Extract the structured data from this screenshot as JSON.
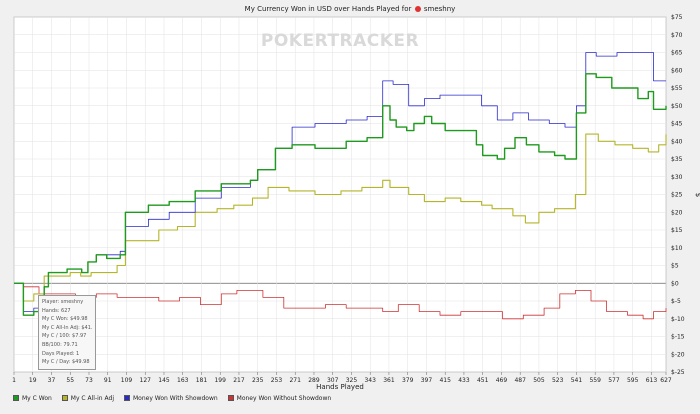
{
  "title": {
    "text": "My Currency Won in USD over Hands Played for",
    "player": "smeshny"
  },
  "watermark": "POKERTRACKER",
  "tooltip": [
    "Player: smeshny",
    "Hands: 627",
    "My C Won: $49.98",
    "My C All-In Adj: $41.92",
    "My C / 100: $7.97",
    "BB/100: 79.71",
    "Days Played: 1",
    "My C / Day: $49.98"
  ],
  "chart_data": {
    "type": "line",
    "title": "My Currency Won in USD over Hands Played for smeshny",
    "xlabel": "Hands Played",
    "ylabel": "$",
    "xlim": [
      1,
      627
    ],
    "ylim": [
      -25,
      75
    ],
    "x_ticks": [
      1,
      19,
      37,
      55,
      73,
      91,
      109,
      127,
      145,
      163,
      181,
      199,
      217,
      235,
      253,
      271,
      289,
      307,
      325,
      343,
      361,
      379,
      397,
      415,
      433,
      451,
      469,
      487,
      505,
      523,
      541,
      559,
      577,
      595,
      613,
      627
    ],
    "y_ticks": [
      {
        "value": 75,
        "label": "$75"
      },
      {
        "value": 70,
        "label": "$70"
      },
      {
        "value": 65,
        "label": "$65"
      },
      {
        "value": 60,
        "label": "$60"
      },
      {
        "value": 55,
        "label": "$55"
      },
      {
        "value": 50,
        "label": "$50"
      },
      {
        "value": 45,
        "label": "$45"
      },
      {
        "value": 40,
        "label": "$40"
      },
      {
        "value": 35,
        "label": "$35"
      },
      {
        "value": 30,
        "label": "$30"
      },
      {
        "value": 25,
        "label": "$25"
      },
      {
        "value": 20,
        "label": "$20"
      },
      {
        "value": 15,
        "label": "$15"
      },
      {
        "value": 10,
        "label": "$10"
      },
      {
        "value": 5,
        "label": "$5"
      },
      {
        "value": 0,
        "label": "$0"
      },
      {
        "value": -5,
        "label": "$-5"
      },
      {
        "value": -10,
        "label": "$-10"
      },
      {
        "value": -15,
        "label": "$-15"
      },
      {
        "value": -20,
        "label": "$-20"
      },
      {
        "value": -25,
        "label": "$-25"
      }
    ],
    "grid": true,
    "legend_position": "bottom-left",
    "series": [
      {
        "name": "My C Won",
        "color": "#1e9a1e",
        "points": [
          [
            1,
            0
          ],
          [
            10,
            -9
          ],
          [
            20,
            -8
          ],
          [
            30,
            -1
          ],
          [
            34,
            3
          ],
          [
            44,
            3
          ],
          [
            52,
            4
          ],
          [
            60,
            4
          ],
          [
            66,
            3
          ],
          [
            72,
            6
          ],
          [
            80,
            8
          ],
          [
            90,
            7
          ],
          [
            103,
            8
          ],
          [
            108,
            20
          ],
          [
            118,
            20
          ],
          [
            130,
            22
          ],
          [
            150,
            23
          ],
          [
            175,
            26
          ],
          [
            200,
            28
          ],
          [
            228,
            29
          ],
          [
            235,
            32
          ],
          [
            252,
            38
          ],
          [
            268,
            39
          ],
          [
            290,
            38
          ],
          [
            320,
            40
          ],
          [
            340,
            41
          ],
          [
            355,
            50
          ],
          [
            362,
            46
          ],
          [
            368,
            44
          ],
          [
            378,
            43
          ],
          [
            385,
            45
          ],
          [
            395,
            47
          ],
          [
            402,
            45
          ],
          [
            415,
            43
          ],
          [
            430,
            43
          ],
          [
            445,
            39
          ],
          [
            451,
            36
          ],
          [
            465,
            35
          ],
          [
            472,
            38
          ],
          [
            482,
            41
          ],
          [
            493,
            39
          ],
          [
            505,
            37
          ],
          [
            520,
            36
          ],
          [
            530,
            35
          ],
          [
            541,
            48
          ],
          [
            550,
            59
          ],
          [
            560,
            58
          ],
          [
            575,
            55
          ],
          [
            590,
            55
          ],
          [
            600,
            52
          ],
          [
            610,
            54
          ],
          [
            615,
            49
          ],
          [
            627,
            49.98
          ]
        ]
      },
      {
        "name": "My C All-in Adj",
        "color": "#b5b52a",
        "points": [
          [
            1,
            0
          ],
          [
            10,
            -5
          ],
          [
            20,
            -3
          ],
          [
            30,
            2
          ],
          [
            40,
            2
          ],
          [
            55,
            3
          ],
          [
            65,
            2
          ],
          [
            75,
            3
          ],
          [
            90,
            3
          ],
          [
            100,
            5
          ],
          [
            108,
            12
          ],
          [
            118,
            12
          ],
          [
            140,
            15
          ],
          [
            158,
            16
          ],
          [
            175,
            20
          ],
          [
            196,
            21
          ],
          [
            212,
            22
          ],
          [
            230,
            24
          ],
          [
            245,
            27
          ],
          [
            265,
            26
          ],
          [
            290,
            25
          ],
          [
            315,
            26
          ],
          [
            335,
            27
          ],
          [
            355,
            29
          ],
          [
            362,
            27
          ],
          [
            380,
            25
          ],
          [
            395,
            23
          ],
          [
            415,
            24
          ],
          [
            430,
            23
          ],
          [
            450,
            22
          ],
          [
            460,
            21
          ],
          [
            480,
            19
          ],
          [
            492,
            17
          ],
          [
            505,
            20
          ],
          [
            520,
            21
          ],
          [
            540,
            25
          ],
          [
            550,
            42
          ],
          [
            562,
            40
          ],
          [
            578,
            39
          ],
          [
            595,
            38
          ],
          [
            610,
            37
          ],
          [
            620,
            39
          ],
          [
            627,
            41.92
          ]
        ]
      },
      {
        "name": "Money Won With Showdown",
        "color": "#2a2acc",
        "points": [
          [
            1,
            0
          ],
          [
            10,
            -8
          ],
          [
            20,
            -7
          ],
          [
            30,
            -1
          ],
          [
            34,
            3
          ],
          [
            52,
            4
          ],
          [
            66,
            3
          ],
          [
            72,
            6
          ],
          [
            80,
            8
          ],
          [
            92,
            8
          ],
          [
            103,
            9
          ],
          [
            108,
            16
          ],
          [
            118,
            16
          ],
          [
            130,
            18
          ],
          [
            150,
            20
          ],
          [
            175,
            24
          ],
          [
            200,
            27
          ],
          [
            228,
            29
          ],
          [
            235,
            32
          ],
          [
            252,
            38
          ],
          [
            268,
            44
          ],
          [
            290,
            45
          ],
          [
            320,
            46
          ],
          [
            340,
            47
          ],
          [
            355,
            57
          ],
          [
            365,
            56
          ],
          [
            380,
            50
          ],
          [
            395,
            52
          ],
          [
            410,
            53
          ],
          [
            430,
            53
          ],
          [
            450,
            50
          ],
          [
            465,
            46
          ],
          [
            480,
            48
          ],
          [
            495,
            46
          ],
          [
            515,
            45
          ],
          [
            530,
            44
          ],
          [
            541,
            50
          ],
          [
            550,
            65
          ],
          [
            560,
            64
          ],
          [
            580,
            65
          ],
          [
            600,
            65
          ],
          [
            615,
            57
          ],
          [
            627,
            57
          ]
        ]
      },
      {
        "name": "Money Won Without Showdown",
        "color": "#cc3333",
        "points": [
          [
            1,
            0
          ],
          [
            10,
            -1
          ],
          [
            25,
            -3
          ],
          [
            40,
            -3
          ],
          [
            60,
            -4
          ],
          [
            80,
            -3
          ],
          [
            100,
            -4
          ],
          [
            120,
            -4
          ],
          [
            140,
            -5
          ],
          [
            160,
            -4
          ],
          [
            180,
            -6
          ],
          [
            200,
            -3
          ],
          [
            215,
            -2
          ],
          [
            225,
            -2
          ],
          [
            240,
            -4
          ],
          [
            260,
            -7
          ],
          [
            280,
            -7
          ],
          [
            300,
            -6
          ],
          [
            320,
            -7
          ],
          [
            340,
            -7
          ],
          [
            355,
            -8
          ],
          [
            370,
            -6
          ],
          [
            390,
            -8
          ],
          [
            410,
            -9
          ],
          [
            430,
            -8
          ],
          [
            450,
            -8
          ],
          [
            470,
            -10
          ],
          [
            490,
            -9
          ],
          [
            510,
            -7
          ],
          [
            525,
            -3
          ],
          [
            540,
            -2
          ],
          [
            555,
            -5
          ],
          [
            570,
            -8
          ],
          [
            590,
            -9
          ],
          [
            605,
            -10
          ],
          [
            615,
            -8
          ],
          [
            627,
            -7
          ]
        ]
      }
    ]
  }
}
